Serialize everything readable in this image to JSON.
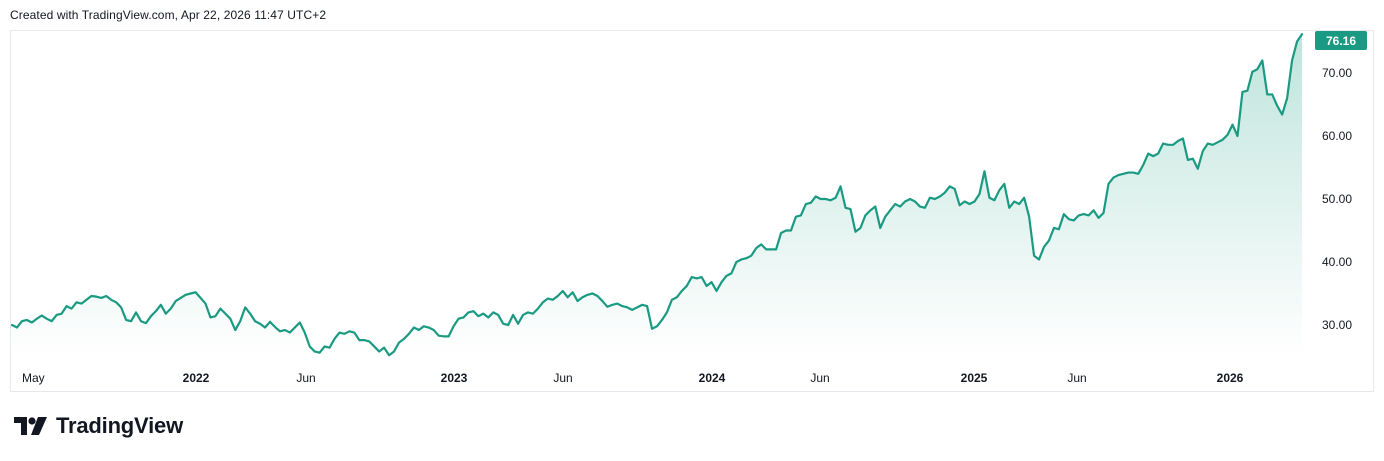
{
  "header": {
    "created_note": "Created with TradingView.com, Apr 22, 2026 11:47 UTC+2"
  },
  "brand": {
    "name": "TradingView",
    "logo_icon": "tradingview-logo-icon"
  },
  "colors": {
    "line": "#1a9a82",
    "area_top": "#bfe4dc",
    "area_bottom": "#ffffff",
    "last_price_badge": "#1a9a82",
    "frame": "#e6e8ee",
    "text": "#131722"
  },
  "chart_data": {
    "type": "area",
    "title": "",
    "xlabel": "",
    "ylabel": "",
    "ylim": [
      23.5,
      79
    ],
    "grid": false,
    "legend": "none",
    "price_axis": {
      "ticks": [
        "30.00",
        "40.00",
        "50.00",
        "60.00",
        "70.00"
      ],
      "tick_values": [
        30,
        40,
        50,
        60,
        70
      ]
    },
    "time_axis": {
      "ticks": [
        {
          "label": "May",
          "bold": false
        },
        {
          "label": "2022",
          "bold": true
        },
        {
          "label": "Jun",
          "bold": false
        },
        {
          "label": "2023",
          "bold": true
        },
        {
          "label": "Jun",
          "bold": false
        },
        {
          "label": "2024",
          "bold": true
        },
        {
          "label": "Jun",
          "bold": false
        },
        {
          "label": "2025",
          "bold": true
        },
        {
          "label": "Jun",
          "bold": false
        },
        {
          "label": "2026",
          "bold": true
        }
      ]
    },
    "last_price": "76.16",
    "series": [
      {
        "values": [
          30.0,
          29.6,
          30.6,
          30.8,
          30.4,
          31.0,
          31.5,
          31.0,
          30.6,
          31.6,
          31.8,
          33.0,
          32.6,
          33.6,
          33.4,
          34.0,
          34.6,
          34.5,
          34.3,
          34.6,
          34.0,
          33.6,
          32.8,
          30.8,
          30.6,
          32.0,
          30.6,
          30.3,
          31.4,
          32.2,
          33.2,
          31.8,
          32.6,
          33.8,
          34.3,
          34.8,
          35.0,
          35.2,
          34.3,
          33.4,
          31.2,
          31.4,
          32.6,
          31.8,
          31.0,
          29.2,
          30.6,
          32.8,
          31.8,
          30.6,
          30.2,
          29.6,
          30.5,
          29.7,
          29.0,
          29.2,
          28.8,
          29.6,
          30.4,
          28.8,
          26.6,
          25.8,
          25.6,
          26.6,
          26.4,
          27.8,
          28.8,
          28.6,
          29.0,
          28.8,
          27.6,
          27.6,
          27.4,
          26.6,
          25.8,
          26.4,
          25.2,
          25.8,
          27.2,
          27.8,
          28.6,
          29.6,
          29.2,
          29.8,
          29.6,
          29.2,
          28.3,
          28.2,
          28.2,
          29.8,
          31.0,
          31.2,
          32.0,
          32.2,
          31.4,
          31.8,
          31.2,
          32.0,
          31.6,
          30.2,
          30.0,
          31.6,
          30.2,
          31.6,
          32.0,
          31.8,
          32.6,
          33.6,
          34.2,
          34.0,
          34.6,
          35.4,
          34.4,
          35.2,
          33.8,
          34.4,
          34.8,
          35.0,
          34.6,
          33.8,
          32.9,
          33.2,
          33.4,
          33.0,
          32.8,
          32.4,
          32.8,
          33.2,
          33.0,
          29.4,
          29.8,
          30.8,
          32.0,
          34.0,
          34.4,
          35.4,
          36.2,
          37.6,
          37.4,
          37.6,
          36.2,
          36.8,
          35.4,
          36.8,
          37.8,
          38.2,
          40.0,
          40.4,
          40.6,
          41.0,
          42.2,
          42.8,
          42.0,
          42.0,
          42.0,
          44.6,
          45.0,
          45.0,
          47.2,
          47.4,
          49.2,
          49.4,
          50.4,
          50.0,
          50.0,
          49.8,
          50.2,
          52.0,
          48.6,
          48.4,
          44.8,
          45.4,
          47.4,
          48.2,
          48.8,
          45.4,
          47.2,
          48.2,
          49.2,
          48.8,
          49.6,
          50.0,
          49.6,
          48.8,
          48.6,
          50.2,
          50.0,
          50.4,
          51.0,
          52.0,
          51.6,
          49.0,
          49.6,
          49.2,
          49.6,
          50.8,
          54.4,
          50.2,
          49.8,
          51.4,
          52.4,
          48.6,
          49.6,
          49.2,
          50.2,
          47.2,
          41.0,
          40.4,
          42.4,
          43.4,
          45.4,
          45.2,
          47.6,
          46.8,
          46.6,
          47.4,
          47.6,
          47.4,
          48.2,
          47.0,
          47.8,
          52.4,
          53.4,
          53.8,
          54.0,
          54.2,
          54.2,
          54.0,
          55.4,
          57.2,
          56.8,
          57.2,
          58.8,
          58.6,
          58.6,
          59.2,
          59.6,
          56.2,
          56.4,
          54.8,
          57.6,
          58.8,
          58.6,
          59.0,
          59.4,
          60.2,
          61.8,
          60.0,
          67.0,
          67.2,
          70.2,
          70.6,
          72.0,
          66.6,
          66.6,
          64.8,
          63.4,
          66.0,
          72.0,
          75.0,
          76.16
        ]
      }
    ]
  }
}
